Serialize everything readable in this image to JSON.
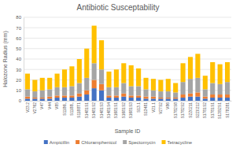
{
  "chart_data": {
    "type": "bar",
    "stacked": true,
    "title": "Antibiotic Susceptability",
    "x_label": "Sample ID",
    "y_label": "Halozone Radius (mm)",
    "categories": [
      "V23.2",
      "V2762",
      "V47",
      "V44",
      "V85",
      "S1186L",
      "S1188L",
      "S1188T1",
      "S1481S1",
      "S1481S2",
      "S1481S3",
      "S1481S4",
      "S1681S1",
      "S1681S2",
      "S1681S3",
      "S13.1",
      "S13481",
      "V21.1",
      "V27S2",
      "V86",
      "S1782S8",
      "S1782S2",
      "S2Z0211",
      "S2Z0212",
      "S1781S2",
      "S1781S1",
      "S13B2S1",
      "S178281"
    ],
    "series": [
      {
        "name": "Ampicillin",
        "color": "#4472c4",
        "values": [
          2,
          2,
          2,
          2,
          3,
          3,
          3,
          4,
          6,
          12,
          10,
          3,
          3,
          4,
          3,
          3,
          2,
          2,
          2,
          2,
          2,
          3,
          4,
          4,
          2,
          3,
          3,
          3
        ]
      },
      {
        "name": "Chloramphenicol",
        "color": "#ed7d31",
        "values": [
          2,
          1,
          1,
          2,
          2,
          2,
          2,
          3,
          4,
          8,
          6,
          2,
          2,
          3,
          2,
          2,
          2,
          2,
          1,
          1,
          1,
          3,
          3,
          4,
          2,
          3,
          3,
          3
        ]
      },
      {
        "name": "Spectomycin",
        "color": "#a5a5a5",
        "values": [
          7,
          6,
          7,
          7,
          8,
          8,
          9,
          10,
          12,
          16,
          14,
          8,
          8,
          10,
          9,
          9,
          7,
          6,
          6,
          6,
          5,
          12,
          14,
          14,
          7,
          11,
          10,
          12
        ]
      },
      {
        "name": "Tetracycline",
        "color": "#ffc000",
        "values": [
          15,
          11,
          12,
          11,
          13,
          17,
          19,
          23,
          28,
          36,
          28,
          15,
          17,
          19,
          20,
          17,
          11,
          11,
          11,
          12,
          9,
          18,
          21,
          23,
          13,
          20,
          19,
          19
        ]
      }
    ],
    "ylim": [
      0,
      80
    ],
    "yticks": [
      0,
      10,
      20,
      30,
      40,
      50,
      60,
      70,
      80
    ],
    "grid": true,
    "legend": "bottom"
  }
}
